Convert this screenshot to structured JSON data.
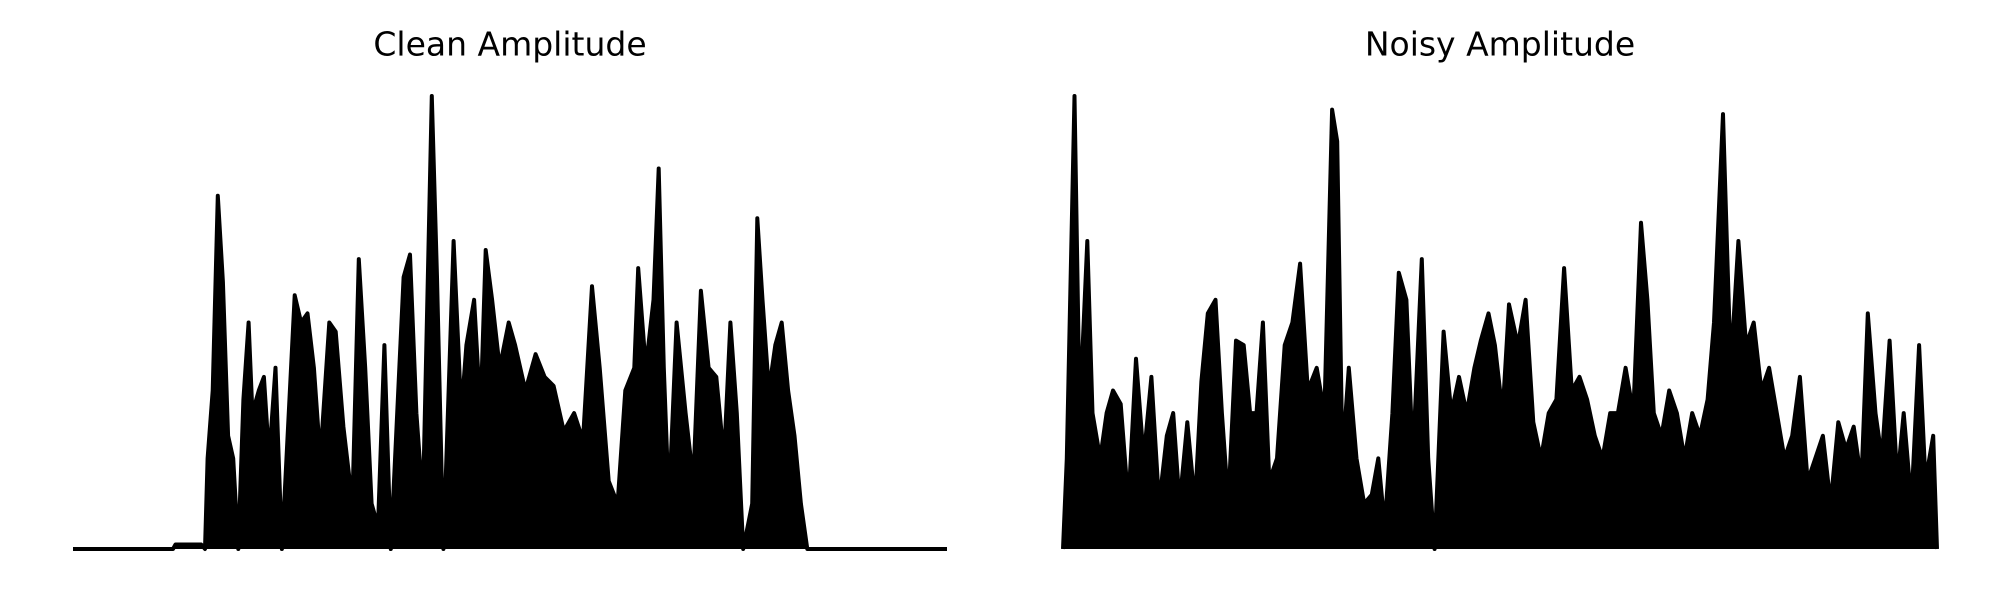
{
  "chart_data": [
    {
      "type": "area",
      "title": "Clean Amplitude",
      "color": "#000000",
      "xlim": [
        0,
        682
      ],
      "ylim": [
        0,
        1
      ],
      "x": [
        0,
        78,
        80,
        100,
        103,
        105,
        109,
        113,
        117,
        121,
        125,
        129,
        133,
        137,
        140,
        145,
        149,
        153,
        158,
        163,
        173,
        178,
        183,
        188,
        193,
        200,
        205,
        211,
        218,
        223,
        228,
        233,
        238,
        243,
        248,
        258,
        263,
        268,
        273,
        280,
        284,
        289,
        297,
        303,
        307,
        313,
        318,
        322,
        327,
        333,
        340,
        345,
        353,
        361,
        368,
        375,
        383,
        391,
        398,
        405,
        411,
        418,
        425,
        431,
        438,
        441,
        447,
        453,
        457,
        461,
        465,
        471,
        478,
        484,
        490,
        496,
        502,
        508,
        513,
        518,
        523,
        530,
        534,
        538,
        543,
        548,
        553,
        558,
        563,
        568,
        573,
        682
      ],
      "values": [
        0,
        0,
        0.01,
        0.01,
        0,
        0.2,
        0.35,
        0.78,
        0.59,
        0.25,
        0.2,
        0,
        0.33,
        0.5,
        0.3,
        0.35,
        0.38,
        0.2,
        0.4,
        0,
        0.56,
        0.5,
        0.52,
        0.4,
        0.2,
        0.5,
        0.48,
        0.27,
        0.1,
        0.64,
        0.4,
        0.1,
        0.05,
        0.45,
        0,
        0.6,
        0.65,
        0.3,
        0.1,
        1.0,
        0.6,
        0,
        0.68,
        0.3,
        0.45,
        0.55,
        0.3,
        0.66,
        0.55,
        0.4,
        0.5,
        0.45,
        0.35,
        0.43,
        0.38,
        0.36,
        0.26,
        0.3,
        0.24,
        0.58,
        0.4,
        0.15,
        0.1,
        0.35,
        0.4,
        0.62,
        0.4,
        0.55,
        0.84,
        0.4,
        0.1,
        0.5,
        0.3,
        0.15,
        0.57,
        0.4,
        0.38,
        0.2,
        0.5,
        0.3,
        0,
        0.1,
        0.73,
        0.55,
        0.35,
        0.45,
        0.5,
        0.35,
        0.25,
        0.1,
        0,
        0
      ]
    },
    {
      "type": "area",
      "title": "Noisy Amplitude",
      "color": "#000000",
      "xlim": [
        0,
        682
      ],
      "ylim": [
        0,
        1
      ],
      "x": [
        0,
        3,
        9,
        13,
        19,
        23,
        29,
        34,
        39,
        45,
        51,
        57,
        63,
        69,
        75,
        81,
        86,
        91,
        97,
        103,
        108,
        113,
        119,
        124,
        129,
        135,
        141,
        146,
        151,
        156,
        161,
        167,
        173,
        179,
        185,
        191,
        198,
        204,
        210,
        214,
        218,
        223,
        229,
        235,
        241,
        246,
        251,
        257,
        262,
        268,
        273,
        280,
        285,
        290,
        297,
        303,
        309,
        315,
        321,
        326,
        332,
        337,
        343,
        348,
        355,
        361,
        367,
        373,
        379,
        385,
        391,
        397,
        403,
        409,
        415,
        421,
        427,
        433,
        439,
        445,
        451,
        456,
        461,
        467,
        473,
        479,
        485,
        491,
        497,
        503,
        508,
        515,
        521,
        527,
        533,
        539,
        545,
        551,
        557,
        563,
        569,
        575,
        581,
        587,
        593,
        599,
        605,
        611,
        617,
        623,
        628,
        634,
        639,
        645,
        651,
        656,
        662,
        668,
        673,
        679,
        682
      ],
      "values": [
        0,
        0.2,
        1.0,
        0.3,
        0.68,
        0.3,
        0.2,
        0.3,
        0.35,
        0.32,
        0.1,
        0.42,
        0.2,
        0.38,
        0.1,
        0.25,
        0.3,
        0.1,
        0.28,
        0.1,
        0.37,
        0.52,
        0.55,
        0.3,
        0.1,
        0.46,
        0.45,
        0.3,
        0.3,
        0.5,
        0.15,
        0.2,
        0.45,
        0.5,
        0.63,
        0.35,
        0.4,
        0.3,
        0.97,
        0.9,
        0.2,
        0.4,
        0.2,
        0.1,
        0.12,
        0.2,
        0.05,
        0.3,
        0.61,
        0.55,
        0.2,
        0.64,
        0.2,
        0,
        0.48,
        0.3,
        0.38,
        0.3,
        0.4,
        0.46,
        0.52,
        0.45,
        0.3,
        0.54,
        0.45,
        0.55,
        0.28,
        0.2,
        0.3,
        0.33,
        0.62,
        0.35,
        0.38,
        0.33,
        0.25,
        0.2,
        0.3,
        0.3,
        0.4,
        0.3,
        0.72,
        0.55,
        0.3,
        0.25,
        0.35,
        0.3,
        0.2,
        0.3,
        0.25,
        0.33,
        0.5,
        0.96,
        0.4,
        0.68,
        0.45,
        0.5,
        0.35,
        0.4,
        0.3,
        0.2,
        0.25,
        0.38,
        0.15,
        0.2,
        0.25,
        0.1,
        0.28,
        0.22,
        0.27,
        0.15,
        0.52,
        0.3,
        0.2,
        0.46,
        0.15,
        0.3,
        0.1,
        0.45,
        0.15,
        0.25,
        0
      ]
    }
  ]
}
